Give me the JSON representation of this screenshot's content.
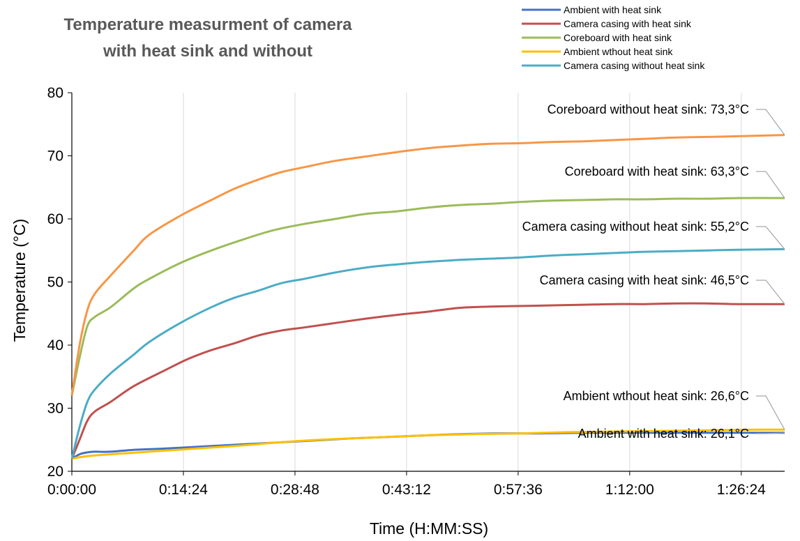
{
  "chart_data": {
    "type": "line",
    "title_line1": "Temperature measurment of camera",
    "title_line2": "with heat sink and without",
    "xlabel": "Time (H:MM:SS)",
    "ylabel": "Temperature (°C)",
    "x_unit": "minutes",
    "xlim": [
      0,
      92
    ],
    "ylim": [
      20,
      80
    ],
    "x_ticks": [
      "0:00:00",
      "0:14:24",
      "0:28:48",
      "0:43:12",
      "0:57:36",
      "1:12:00",
      "1:26:24"
    ],
    "y_ticks": [
      20,
      30,
      40,
      50,
      60,
      70,
      80
    ],
    "grid": "vertical",
    "legend_position": "top-right",
    "legend": [
      {
        "name": "Ambient with heat sink",
        "color": "#4472C4"
      },
      {
        "name": "Camera casing with heat sink",
        "color": "#C0504D"
      },
      {
        "name": "Coreboard with heat sink",
        "color": "#9BBB59"
      },
      {
        "name": "Ambient wthout heat sink",
        "color": "#FFC000"
      },
      {
        "name": "Camera casing without heat sink",
        "color": "#4BACC6"
      }
    ],
    "series": [
      {
        "key": "ambient_with",
        "color": "#4472C4",
        "points": [
          [
            0,
            22
          ],
          [
            1,
            22.7
          ],
          [
            2,
            23.0
          ],
          [
            3,
            23.1
          ],
          [
            5,
            23.1
          ],
          [
            8,
            23.4
          ],
          [
            12,
            23.6
          ],
          [
            18,
            24.0
          ],
          [
            24,
            24.4
          ],
          [
            30,
            24.8
          ],
          [
            36,
            25.2
          ],
          [
            42,
            25.5
          ],
          [
            48,
            25.8
          ],
          [
            54,
            26.0
          ],
          [
            60,
            26.0
          ],
          [
            66,
            26.1
          ],
          [
            72,
            26.1
          ],
          [
            78,
            26.1
          ],
          [
            84,
            26.1
          ],
          [
            89,
            26.1
          ],
          [
            92,
            26.1
          ]
        ]
      },
      {
        "key": "ambient_without",
        "color": "#FFC000",
        "points": [
          [
            0,
            22
          ],
          [
            2,
            22.4
          ],
          [
            5,
            22.7
          ],
          [
            10,
            23.1
          ],
          [
            16,
            23.6
          ],
          [
            22,
            24.1
          ],
          [
            28,
            24.7
          ],
          [
            34,
            25.1
          ],
          [
            40,
            25.4
          ],
          [
            46,
            25.7
          ],
          [
            52,
            25.9
          ],
          [
            58,
            26.0
          ],
          [
            64,
            26.2
          ],
          [
            70,
            26.3
          ],
          [
            76,
            26.4
          ],
          [
            82,
            26.5
          ],
          [
            89,
            26.6
          ],
          [
            92,
            26.6
          ]
        ]
      },
      {
        "key": "casing_with",
        "color": "#C0504D",
        "points": [
          [
            0,
            22
          ],
          [
            1,
            25
          ],
          [
            2,
            28
          ],
          [
            3,
            29.5
          ],
          [
            5,
            31
          ],
          [
            8,
            33.5
          ],
          [
            12,
            36
          ],
          [
            15,
            37.8
          ],
          [
            18,
            39.2
          ],
          [
            21,
            40.3
          ],
          [
            24,
            41.5
          ],
          [
            27,
            42.3
          ],
          [
            30,
            42.8
          ],
          [
            34,
            43.5
          ],
          [
            38,
            44.2
          ],
          [
            42,
            44.8
          ],
          [
            46,
            45.3
          ],
          [
            50,
            45.9
          ],
          [
            54,
            46.1
          ],
          [
            58,
            46.2
          ],
          [
            62,
            46.3
          ],
          [
            66,
            46.4
          ],
          [
            70,
            46.5
          ],
          [
            74,
            46.5
          ],
          [
            78,
            46.6
          ],
          [
            82,
            46.6
          ],
          [
            86,
            46.5
          ],
          [
            92,
            46.5
          ]
        ]
      },
      {
        "key": "casing_without",
        "color": "#4BACC6",
        "points": [
          [
            0,
            22
          ],
          [
            1,
            27
          ],
          [
            2,
            31
          ],
          [
            3,
            33
          ],
          [
            5,
            35.5
          ],
          [
            8,
            38.5
          ],
          [
            10,
            40.5
          ],
          [
            14,
            43.5
          ],
          [
            18,
            46
          ],
          [
            21,
            47.5
          ],
          [
            24,
            48.6
          ],
          [
            27,
            49.8
          ],
          [
            30,
            50.5
          ],
          [
            34,
            51.5
          ],
          [
            38,
            52.3
          ],
          [
            42,
            52.8
          ],
          [
            46,
            53.2
          ],
          [
            50,
            53.5
          ],
          [
            54,
            53.7
          ],
          [
            58,
            53.9
          ],
          [
            62,
            54.2
          ],
          [
            66,
            54.4
          ],
          [
            70,
            54.6
          ],
          [
            74,
            54.8
          ],
          [
            78,
            54.9
          ],
          [
            82,
            55.0
          ],
          [
            86,
            55.1
          ],
          [
            92,
            55.2
          ]
        ]
      },
      {
        "key": "coreboard_with",
        "color": "#9BBB59",
        "points": [
          [
            0,
            32
          ],
          [
            1,
            38
          ],
          [
            2,
            43
          ],
          [
            3,
            44.5
          ],
          [
            5,
            46
          ],
          [
            8,
            49
          ],
          [
            10,
            50.5
          ],
          [
            14,
            53
          ],
          [
            18,
            55
          ],
          [
            22,
            56.7
          ],
          [
            26,
            58.2
          ],
          [
            30,
            59.2
          ],
          [
            34,
            60.0
          ],
          [
            38,
            60.8
          ],
          [
            42,
            61.2
          ],
          [
            46,
            61.8
          ],
          [
            50,
            62.2
          ],
          [
            54,
            62.4
          ],
          [
            58,
            62.7
          ],
          [
            62,
            62.9
          ],
          [
            66,
            63.0
          ],
          [
            70,
            63.1
          ],
          [
            74,
            63.1
          ],
          [
            78,
            63.2
          ],
          [
            82,
            63.2
          ],
          [
            86,
            63.3
          ],
          [
            92,
            63.3
          ]
        ]
      },
      {
        "key": "coreboard_without",
        "color": "#F79646",
        "points": [
          [
            0,
            32
          ],
          [
            1,
            40
          ],
          [
            2,
            45.5
          ],
          [
            3,
            48.2
          ],
          [
            5,
            51
          ],
          [
            8,
            55
          ],
          [
            10,
            57.5
          ],
          [
            14,
            60.5
          ],
          [
            18,
            63
          ],
          [
            21,
            64.8
          ],
          [
            24,
            66.2
          ],
          [
            27,
            67.4
          ],
          [
            30,
            68.2
          ],
          [
            34,
            69.2
          ],
          [
            38,
            69.9
          ],
          [
            42,
            70.6
          ],
          [
            46,
            71.2
          ],
          [
            50,
            71.6
          ],
          [
            54,
            71.9
          ],
          [
            58,
            72.0
          ],
          [
            62,
            72.2
          ],
          [
            66,
            72.3
          ],
          [
            70,
            72.5
          ],
          [
            74,
            72.7
          ],
          [
            78,
            72.9
          ],
          [
            82,
            73.0
          ],
          [
            86,
            73.1
          ],
          [
            92,
            73.3
          ]
        ]
      }
    ],
    "annotations": [
      {
        "label": "Coreboard without heat sink:",
        "value": "73,3°C",
        "y": 73.3
      },
      {
        "label": "Coreboard with heat sink:",
        "value": "63,3°C",
        "y": 63.3
      },
      {
        "label": "Camera casing without heat sink:",
        "value": "55,2°C",
        "y": 55.2
      },
      {
        "label": "Camera casing with heat sink:",
        "value": "46,5°C",
        "y": 46.5
      },
      {
        "label": "Ambient wthout heat sink:",
        "value": "26,6°C",
        "y": 26.6
      },
      {
        "label": "Ambient with heat sink:",
        "value": "26,1°C",
        "y": 26.1
      }
    ]
  }
}
